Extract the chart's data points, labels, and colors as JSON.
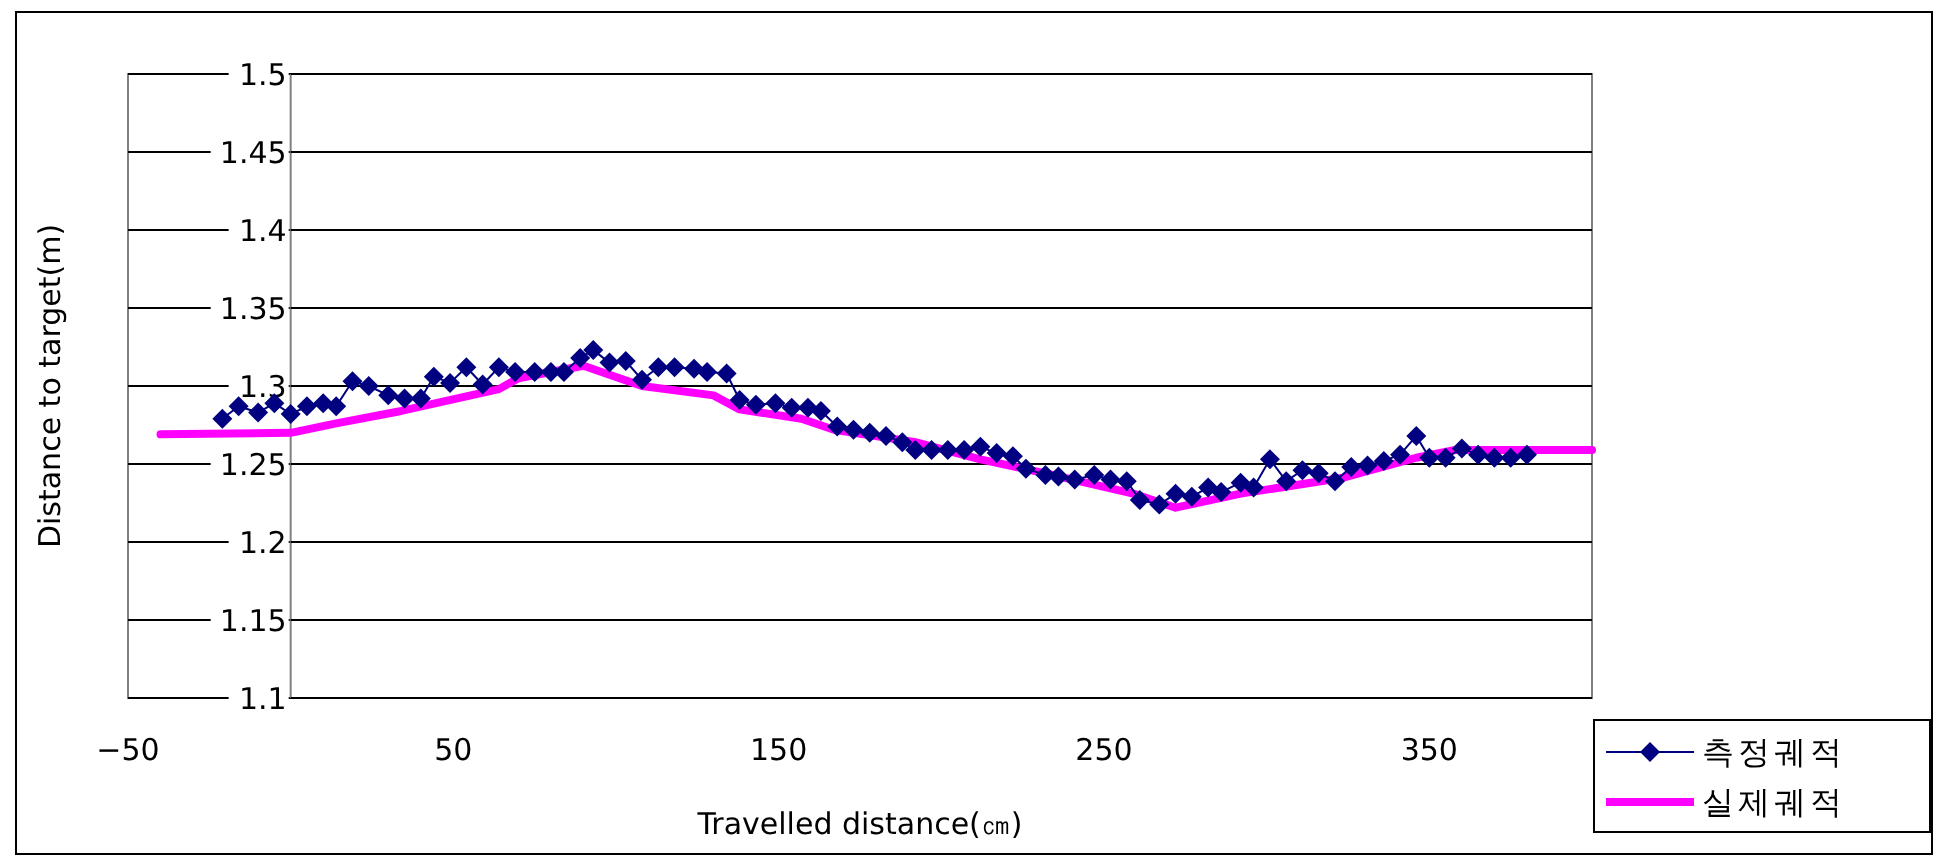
{
  "chart_data": {
    "type": "line",
    "xlabel": "Travelled distance(㎝)",
    "ylabel": "Distance to target(m)",
    "xlim": [
      -50,
      400
    ],
    "xticks": [
      {
        "value": -50,
        "label": "−50"
      },
      50,
      150,
      250,
      350
    ],
    "ylim": [
      1.1,
      1.5
    ],
    "yticks": [
      1.1,
      1.15,
      1.2,
      1.25,
      1.3,
      1.35,
      1.4,
      1.45,
      1.5
    ],
    "grid": "y",
    "legend": "bottom right",
    "series": [
      {
        "name": "측정궤적",
        "color": "#000080",
        "marker": "diamond",
        "x": [
          -21,
          -16,
          -10,
          -5,
          0,
          5,
          10,
          14,
          19,
          24,
          30,
          35,
          40,
          44,
          49,
          54,
          59,
          64,
          69,
          75,
          80,
          84,
          89,
          93,
          98,
          103,
          108,
          113,
          118,
          124,
          128,
          134,
          138,
          143,
          149,
          154,
          159,
          163,
          168,
          173,
          178,
          183,
          188,
          192,
          197,
          202,
          207,
          212,
          217,
          222,
          226,
          232,
          236,
          241,
          247,
          252,
          257,
          261,
          267,
          272,
          277,
          282,
          286,
          292,
          296,
          301,
          306,
          311,
          316,
          321,
          326,
          331,
          336,
          341,
          346,
          350,
          355,
          360,
          365,
          370,
          375,
          380
        ],
        "values": [
          1.279,
          1.287,
          1.283,
          1.289,
          1.282,
          1.287,
          1.289,
          1.287,
          1.303,
          1.3,
          1.294,
          1.292,
          1.292,
          1.306,
          1.302,
          1.312,
          1.301,
          1.312,
          1.309,
          1.309,
          1.309,
          1.309,
          1.318,
          1.323,
          1.315,
          1.316,
          1.304,
          1.312,
          1.312,
          1.311,
          1.309,
          1.308,
          1.291,
          1.288,
          1.289,
          1.286,
          1.286,
          1.284,
          1.274,
          1.272,
          1.27,
          1.268,
          1.264,
          1.259,
          1.259,
          1.259,
          1.259,
          1.261,
          1.257,
          1.255,
          1.247,
          1.243,
          1.242,
          1.24,
          1.243,
          1.24,
          1.239,
          1.227,
          1.224,
          1.231,
          1.229,
          1.235,
          1.232,
          1.238,
          1.235,
          1.253,
          1.239,
          1.246,
          1.244,
          1.239,
          1.248,
          1.249,
          1.252,
          1.256,
          1.268,
          1.254,
          1.254,
          1.26,
          1.256,
          1.254,
          1.254,
          1.256
        ]
      },
      {
        "name": "실제궤적",
        "color": "#ff00ff",
        "marker": "none",
        "x": [
          -40,
          0,
          14,
          34,
          64,
          70,
          90,
          108,
          130,
          138,
          157,
          167,
          192,
          212,
          232,
          259,
          272,
          292,
          323,
          346,
          358,
          400
        ],
        "values": [
          1.269,
          1.27,
          1.276,
          1.284,
          1.298,
          1.305,
          1.313,
          1.3,
          1.294,
          1.285,
          1.279,
          1.272,
          1.264,
          1.253,
          1.244,
          1.231,
          1.222,
          1.231,
          1.241,
          1.254,
          1.259,
          1.259
        ]
      }
    ]
  }
}
